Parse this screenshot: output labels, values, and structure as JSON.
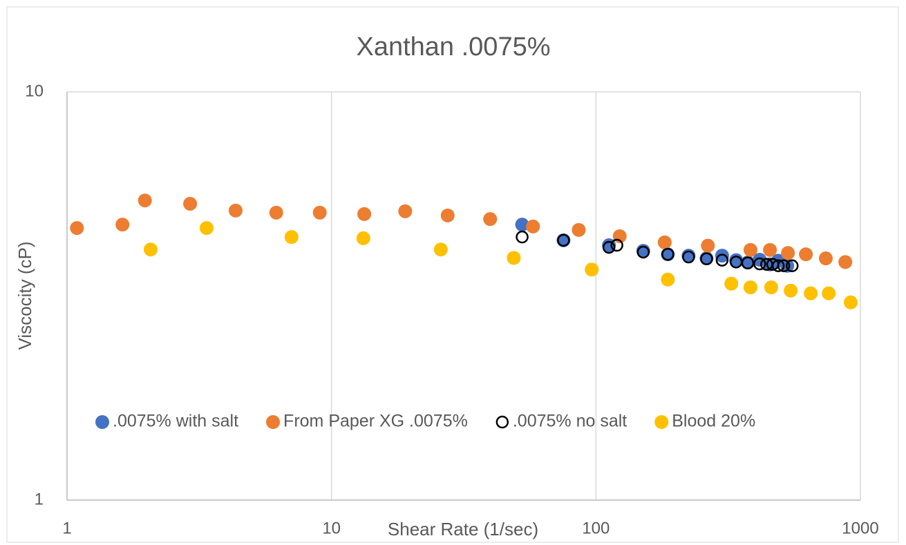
{
  "chart_data": {
    "type": "scatter",
    "title": "Xanthan .0075%",
    "xlabel": "Shear Rate (1/sec)",
    "ylabel": "Viscocity (cP)",
    "xscale": "log",
    "yscale": "log",
    "xlim": [
      1,
      1000
    ],
    "ylim": [
      1,
      10
    ],
    "xticks": [
      1,
      10,
      100,
      1000
    ],
    "yticks": [
      1,
      10
    ],
    "grid": true,
    "legend": "bottom",
    "series": [
      {
        "name": ".0075% with salt",
        "color": "#4472c4",
        "hollow": false,
        "x": [
          52.6,
          75.4,
          112,
          151,
          187,
          224,
          262,
          300,
          339,
          375,
          416,
          455,
          489,
          529
        ],
        "values": [
          4.73,
          4.33,
          4.21,
          4.08,
          4.0,
          3.97,
          3.91,
          3.97,
          3.87,
          3.82,
          3.88,
          3.78,
          3.86,
          3.75
        ]
      },
      {
        "name": "From Paper XG .0075%",
        "color": "#ed7d31",
        "hollow": false,
        "x": [
          1.09,
          1.62,
          1.97,
          2.92,
          4.34,
          6.18,
          9.03,
          13.3,
          19.0,
          27.5,
          39.8,
          57.8,
          86.1,
          123,
          182,
          265,
          384,
          455,
          532,
          622,
          740,
          877
        ],
        "values": [
          4.64,
          4.73,
          5.42,
          5.32,
          5.12,
          5.06,
          5.06,
          5.02,
          5.1,
          4.98,
          4.88,
          4.68,
          4.59,
          4.43,
          4.28,
          4.2,
          4.1,
          4.1,
          4.03,
          4.0,
          3.91,
          3.83
        ]
      },
      {
        "name": ".0075% no salt",
        "color": "#000000",
        "hollow": true,
        "x": [
          52.6,
          75.4,
          112,
          120,
          151,
          187,
          224,
          262,
          300,
          339,
          375,
          416,
          442,
          466,
          489,
          513,
          552
        ],
        "values": [
          4.41,
          4.33,
          4.16,
          4.21,
          4.05,
          4.0,
          3.94,
          3.9,
          3.87,
          3.83,
          3.81,
          3.79,
          3.78,
          3.78,
          3.75,
          3.75,
          3.75
        ]
      },
      {
        "name": "Blood 20%",
        "color": "#ffc000",
        "hollow": false,
        "x": [
          2.07,
          3.37,
          7.06,
          13.2,
          25.9,
          48.9,
          96.4,
          187,
          325,
          384,
          460,
          545,
          649,
          759,
          919
        ],
        "values": [
          4.11,
          4.64,
          4.41,
          4.38,
          4.11,
          3.92,
          3.67,
          3.47,
          3.39,
          3.32,
          3.32,
          3.26,
          3.21,
          3.21,
          3.05
        ]
      }
    ]
  }
}
